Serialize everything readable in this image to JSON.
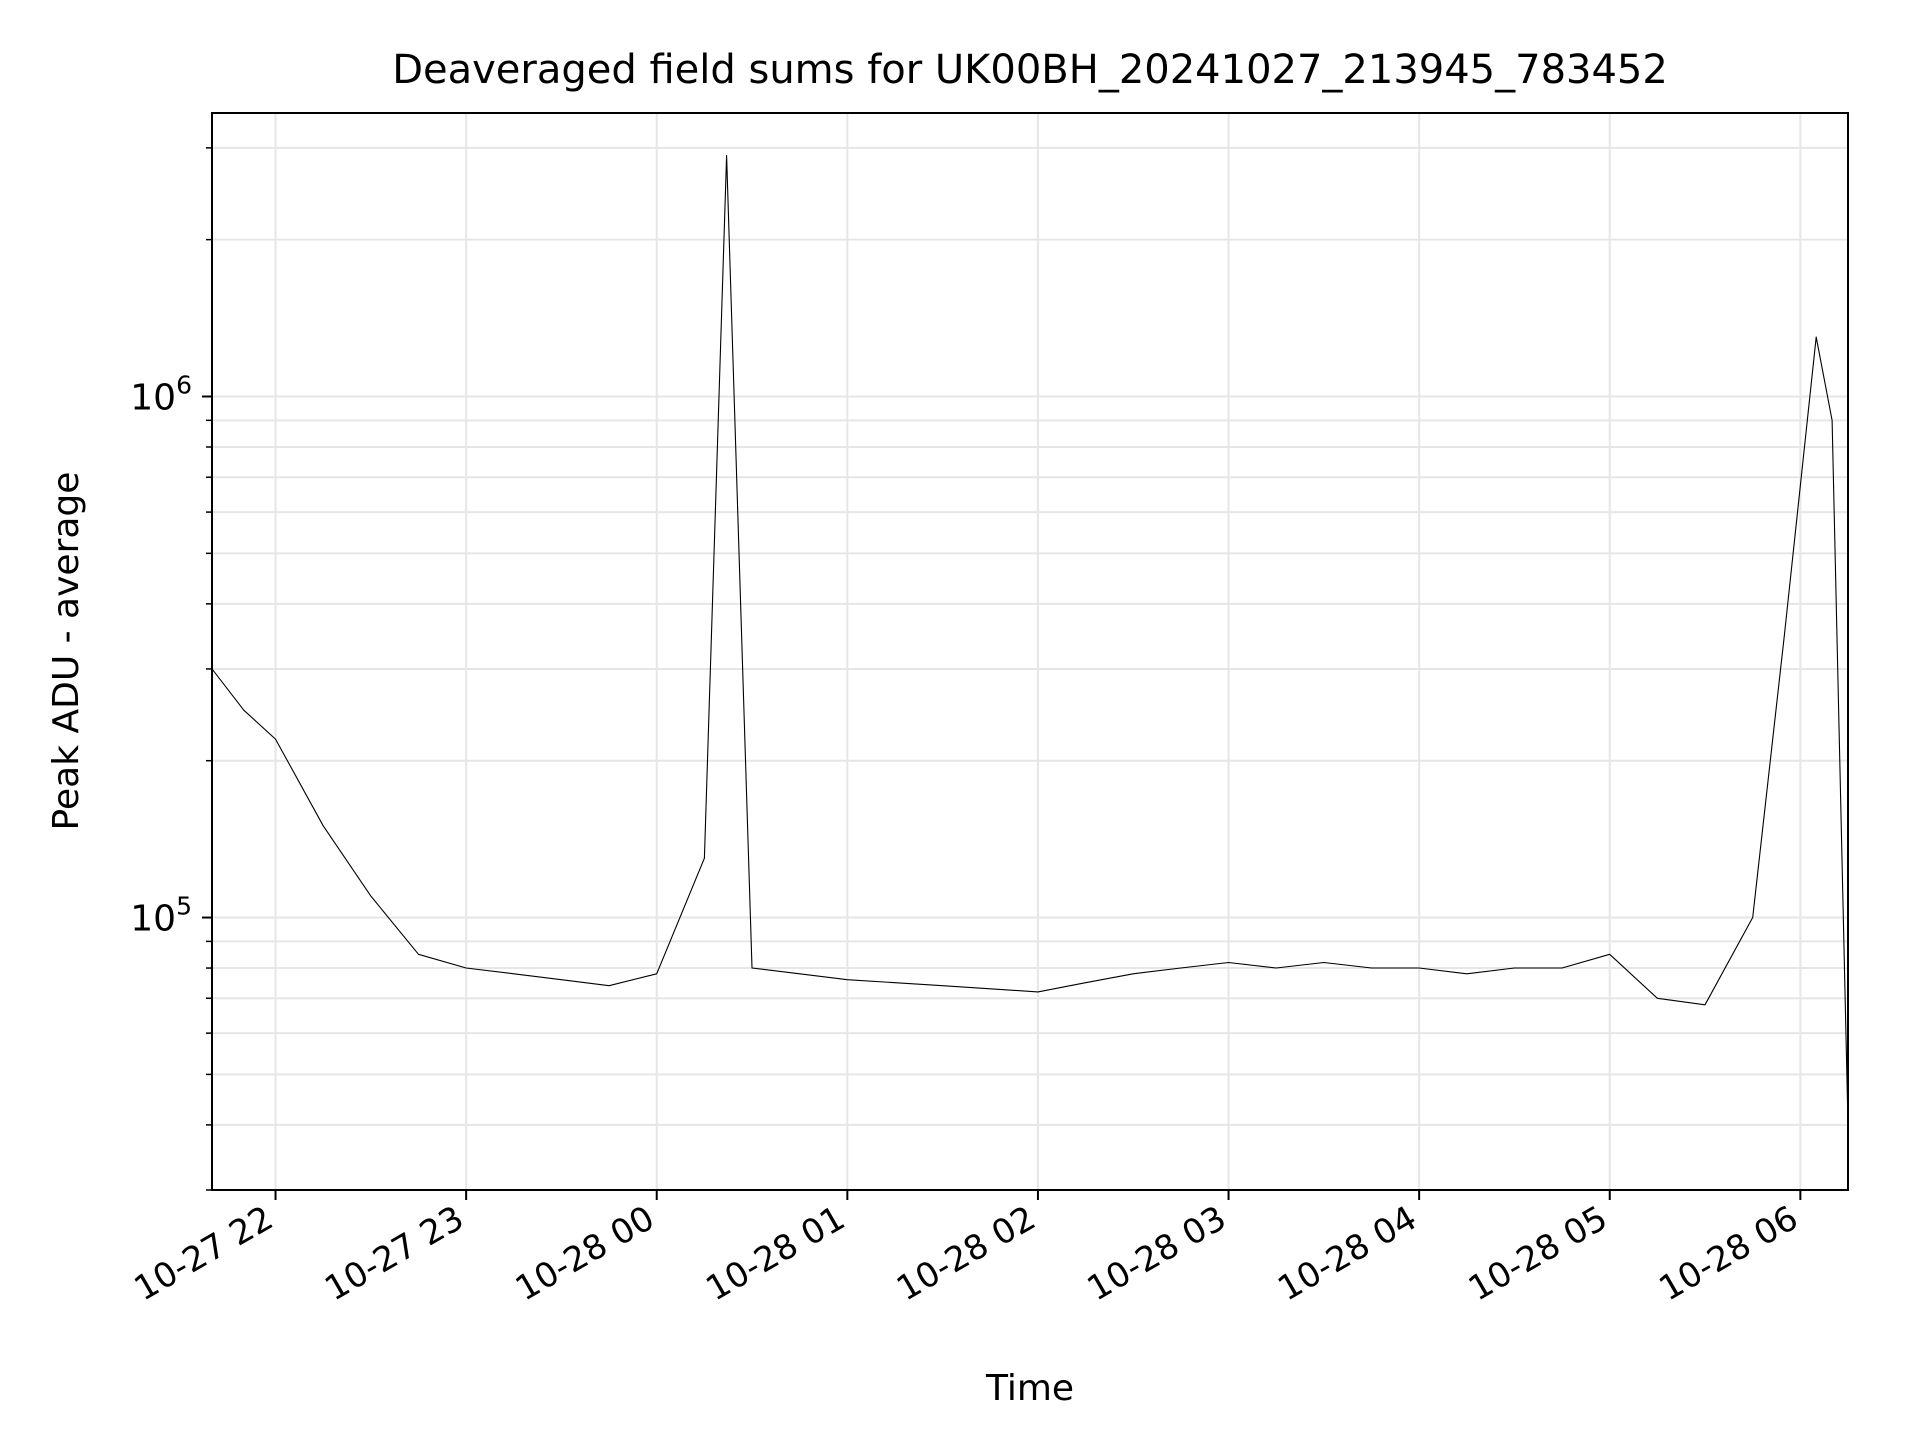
{
  "chart_data": {
    "type": "line",
    "title": "Deaveraged field sums for UK00BH_20241027_213945_783452",
    "xlabel": "Time",
    "ylabel": "Peak ADU - average",
    "yscale": "log",
    "ylim": [
      30000,
      3500000
    ],
    "xlim": [
      "2024-10-27 21:40",
      "2024-10-28 06:15"
    ],
    "x_ticks": [
      "2024-10-27 22:00",
      "2024-10-27 23:00",
      "2024-10-28 00:00",
      "2024-10-28 01:00",
      "2024-10-28 02:00",
      "2024-10-28 03:00",
      "2024-10-28 04:00",
      "2024-10-28 05:00",
      "2024-10-28 06:00"
    ],
    "x_tick_labels": [
      "10-27 22",
      "10-27 23",
      "10-28 00",
      "10-28 01",
      "10-28 02",
      "10-28 03",
      "10-28 04",
      "10-28 05",
      "10-28 06"
    ],
    "y_ticks": [
      100000,
      1000000
    ],
    "grid": true,
    "line_color": "#000000",
    "series": [
      {
        "x": [
          "2024-10-27 21:40",
          "2024-10-27 21:50",
          "2024-10-27 22:00",
          "2024-10-27 22:15",
          "2024-10-27 22:30",
          "2024-10-27 22:45",
          "2024-10-27 23:00",
          "2024-10-27 23:15",
          "2024-10-27 23:30",
          "2024-10-27 23:45",
          "2024-10-28 00:00",
          "2024-10-28 00:15",
          "2024-10-28 00:22",
          "2024-10-28 00:30",
          "2024-10-28 00:45",
          "2024-10-28 01:00",
          "2024-10-28 01:15",
          "2024-10-28 01:30",
          "2024-10-28 01:45",
          "2024-10-28 02:00",
          "2024-10-28 02:15",
          "2024-10-28 02:30",
          "2024-10-28 02:45",
          "2024-10-28 03:00",
          "2024-10-28 03:15",
          "2024-10-28 03:30",
          "2024-10-28 03:45",
          "2024-10-28 04:00",
          "2024-10-28 04:15",
          "2024-10-28 04:30",
          "2024-10-28 04:45",
          "2024-10-28 05:00",
          "2024-10-28 05:15",
          "2024-10-28 05:30",
          "2024-10-28 05:45",
          "2024-10-28 05:55",
          "2024-10-28 06:05",
          "2024-10-28 06:10",
          "2024-10-28 06:15"
        ],
        "y": [
          300000,
          250000,
          220000,
          150000,
          110000,
          85000,
          80000,
          78000,
          76000,
          74000,
          78000,
          130000,
          2900000,
          80000,
          78000,
          76000,
          75000,
          74000,
          73000,
          72000,
          75000,
          78000,
          80000,
          82000,
          80000,
          82000,
          80000,
          80000,
          78000,
          80000,
          80000,
          85000,
          70000,
          68000,
          100000,
          350000,
          1300000,
          900000,
          40000
        ]
      }
    ]
  }
}
